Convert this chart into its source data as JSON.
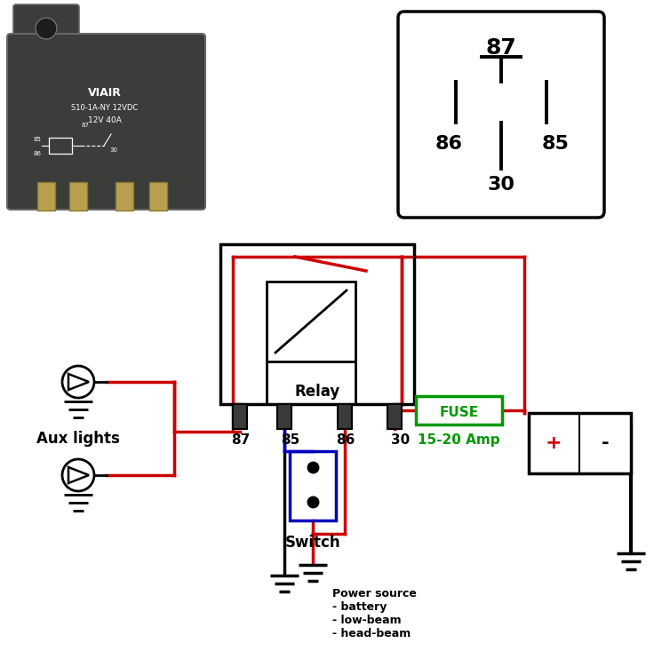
{
  "bg_color": "#ffffff",
  "red": "#cc0000",
  "black": "#000000",
  "blue": "#0000bb",
  "green": "#009900",
  "red_plus": "#cc0000",
  "relay_label": "Relay",
  "fuse_label": "FUSE",
  "amp_label": "15-20 Amp",
  "aux_label": "Aux lights",
  "switch_label": "Switch",
  "power_label": "Power source\n- battery\n- low-beam\n- head-beam",
  "viair_line1": "VIAIR",
  "viair_line2": "S10-1A-NY 12VDC",
  "viair_line3": "12V 40A",
  "dark_body": "#3a3d3a",
  "pin_gold": "#b8a050"
}
